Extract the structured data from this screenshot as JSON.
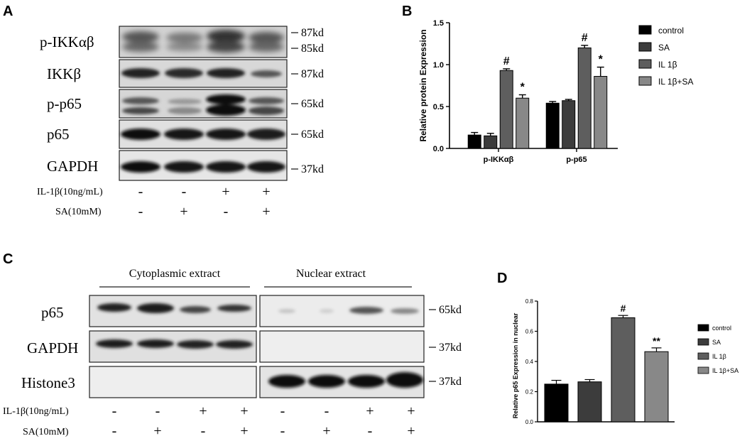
{
  "panels": {
    "a": "A",
    "b": "B",
    "c": "C",
    "d": "D"
  },
  "blot_a": {
    "bands": [
      {
        "label": "p-IKKαβ",
        "markers": [
          "87kd",
          "85kd"
        ]
      },
      {
        "label": "IKKβ",
        "markers": [
          "87kd"
        ]
      },
      {
        "label": "p-p65",
        "markers": [
          "65kd"
        ]
      },
      {
        "label": "p65",
        "markers": [
          "65kd"
        ]
      },
      {
        "label": "GAPDH",
        "markers": [
          "37kd"
        ]
      }
    ],
    "treatments": [
      {
        "label": "IL-1β(10ng/mL)",
        "signs": [
          "-",
          "-",
          "+",
          "+"
        ]
      },
      {
        "label": "SA(10mM)",
        "signs": [
          "-",
          "+",
          "-",
          "+"
        ]
      }
    ]
  },
  "blot_c": {
    "sections": [
      "Cytoplasmic extract",
      "Nuclear extract"
    ],
    "bands": [
      {
        "label": "p65",
        "marker": "65kd"
      },
      {
        "label": "GAPDH",
        "marker": "37kd"
      },
      {
        "label": "Histone3",
        "marker": "37kd"
      }
    ],
    "treatments": [
      {
        "label": "IL-1β(10ng/mL)",
        "signs": [
          "-",
          "-",
          "+",
          "+",
          "-",
          "-",
          "+",
          "+"
        ]
      },
      {
        "label": "SA(10mM)",
        "signs": [
          "-",
          "+",
          "-",
          "+",
          "-",
          "+",
          "-",
          "+"
        ]
      }
    ]
  },
  "chart_data": [
    {
      "type": "bar",
      "panel": "B",
      "title": "",
      "xlabel": "",
      "ylabel": "Relative protein Expression",
      "ylim": [
        0,
        1.5
      ],
      "yticks": [
        "0.0",
        "0.5",
        "1.0",
        "1.5"
      ],
      "categories": [
        "p-IKKαβ",
        "p-p65"
      ],
      "series": [
        {
          "name": "control",
          "values": [
            0.16,
            0.54
          ],
          "errors": [
            0.03,
            0.02
          ],
          "color": "#000000"
        },
        {
          "name": "SA",
          "values": [
            0.15,
            0.57
          ],
          "errors": [
            0.03,
            0.015
          ],
          "color": "#3c3c3c"
        },
        {
          "name": "IL 1β",
          "values": [
            0.93,
            1.2
          ],
          "errors": [
            0.02,
            0.03
          ],
          "color": "#5e5e5e"
        },
        {
          "name": "IL 1β+SA",
          "values": [
            0.6,
            0.86
          ],
          "errors": [
            0.04,
            0.11
          ],
          "color": "#888888"
        }
      ],
      "annotations": [
        {
          "category": 0,
          "series": 2,
          "text": "#"
        },
        {
          "category": 0,
          "series": 3,
          "text": "*"
        },
        {
          "category": 1,
          "series": 2,
          "text": "#"
        },
        {
          "category": 1,
          "series": 3,
          "text": "*"
        }
      ],
      "legend": "right"
    },
    {
      "type": "bar",
      "panel": "D",
      "title": "",
      "xlabel": "",
      "ylabel": "Relative p65 Expression in nuclear",
      "ylim": [
        0,
        0.8
      ],
      "yticks": [
        "0.0",
        "0.2",
        "0.4",
        "0.6",
        "0.8"
      ],
      "categories": [
        "control",
        "SA",
        "IL 1β",
        "IL 1β+SA"
      ],
      "series": [
        {
          "name": "",
          "values": [
            0.25,
            0.265,
            0.69,
            0.465
          ],
          "errors": [
            0.025,
            0.015,
            0.015,
            0.025
          ],
          "colors": [
            "#000000",
            "#3c3c3c",
            "#5e5e5e",
            "#888888"
          ]
        }
      ],
      "annotations": [
        {
          "index": 2,
          "text": "#"
        },
        {
          "index": 3,
          "text": "**"
        }
      ],
      "legend_items": [
        "control",
        "SA",
        "IL 1β",
        "IL 1β+SA"
      ],
      "legend": "right"
    }
  ]
}
